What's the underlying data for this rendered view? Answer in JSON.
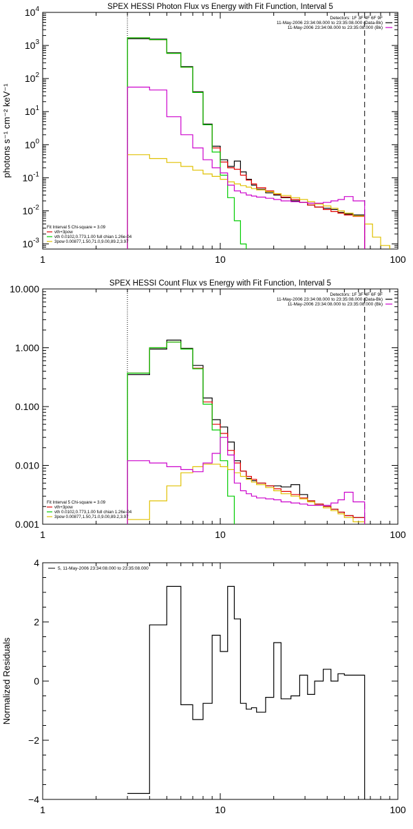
{
  "chart_data": [
    {
      "type": "line",
      "title": "SPEX HESSI Photon Flux vs Energy with Fit Function, Interval 5",
      "ylabel": "photons s⁻¹ cm⁻² keV⁻¹",
      "xlabel": "",
      "xscale": "log",
      "yscale": "log",
      "xlim": [
        1,
        100
      ],
      "ylim": [
        0.0007,
        10000
      ],
      "xticks": [
        {
          "v": 1,
          "label": "1"
        },
        {
          "v": 10,
          "label": "10"
        },
        {
          "v": 100,
          "label": "100"
        }
      ],
      "yticks": [
        {
          "v": 0.001,
          "label": "10",
          "exp": "-3"
        },
        {
          "v": 0.01,
          "label": "10",
          "exp": "-2"
        },
        {
          "v": 0.1,
          "label": "10",
          "exp": "-1"
        },
        {
          "v": 1,
          "label": "10",
          "exp": "0"
        },
        {
          "v": 10,
          "label": "10",
          "exp": "1"
        },
        {
          "v": 100,
          "label": "10",
          "exp": "2"
        },
        {
          "v": 1000,
          "label": "10",
          "exp": "3"
        },
        {
          "v": 10000,
          "label": "10",
          "exp": "4"
        }
      ],
      "vlines": [
        {
          "x": 3.0,
          "style": "dotted"
        },
        {
          "x": 65.0,
          "style": "dashed"
        }
      ],
      "legend_top": [
        {
          "text": "Detectors: 1F 3F 4F 6F 9F",
          "color": ""
        },
        {
          "text": "11-May-2006 23:34:08.000 to 23:35:08.000 (Data-Bk)",
          "color": "#000000"
        },
        {
          "text": "11-May-2006 23:34:08.000 to 23:35:08.000 (Bk)",
          "color": "#cc00cc"
        }
      ],
      "legend_bottom": [
        {
          "text": "Fit Interval 5   Chi-square = 3.09",
          "color": ""
        },
        {
          "text": "vth+3pow",
          "color": "#e00000"
        },
        {
          "text": "vth 0.0102,0.773,1.00  full chian 1.26e-04",
          "color": "#00cc00"
        },
        {
          "text": "3pow 0.00877,1.50,71.0,9.00,89.2,3.97",
          "color": "#e0c000"
        }
      ],
      "series": [
        {
          "color": "#000000",
          "edges": [
            3.0,
            4.0,
            5.0,
            6.0,
            7.0,
            8.0,
            9.0,
            10.0,
            11.0,
            12.0,
            13.0,
            14.0,
            15.0,
            16.0,
            18.0,
            20.0,
            22.0,
            25.0,
            28.0,
            31.0,
            34.0,
            38.0,
            42.0,
            46.0,
            50.0,
            56.0,
            65.0
          ],
          "values": [
            1600,
            1550,
            600,
            230,
            40,
            4.2,
            0.9,
            0.35,
            0.22,
            0.32,
            0.15,
            0.09,
            0.06,
            0.045,
            0.035,
            0.03,
            0.025,
            0.02,
            0.018,
            0.015,
            0.013,
            0.012,
            0.011,
            0.009,
            0.008,
            0.0075
          ]
        },
        {
          "color": "#e00000",
          "edges": [
            3.0,
            4.0,
            5.0,
            6.0,
            7.0,
            8.0,
            9.0,
            10.0,
            11.0,
            12.0,
            13.0,
            14.0,
            15.0,
            16.0,
            18.0,
            20.0,
            22.0,
            25.0,
            28.0,
            31.0,
            34.0,
            38.0,
            42.0,
            46.0,
            50.0,
            56.0,
            65.0
          ],
          "values": [
            1700,
            1500,
            580,
            220,
            38,
            4.0,
            0.8,
            0.3,
            0.2,
            0.18,
            0.12,
            0.085,
            0.065,
            0.05,
            0.04,
            0.032,
            0.026,
            0.022,
            0.018,
            0.015,
            0.013,
            0.011,
            0.0095,
            0.0085,
            0.0075,
            0.0068
          ]
        },
        {
          "color": "#00cc00",
          "edges": [
            3.0,
            4.0,
            5.0,
            6.0,
            7.0,
            8.0,
            9.0,
            10.0,
            11.0,
            12.0,
            13.0,
            14.0
          ],
          "values": [
            1700,
            1500,
            580,
            220,
            38,
            4.0,
            0.6,
            0.12,
            0.025,
            0.005,
            0.001
          ]
        },
        {
          "color": "#e0c000",
          "edges": [
            3.0,
            4.0,
            5.0,
            6.0,
            7.0,
            8.0,
            9.0,
            10.0,
            11.0,
            12.0,
            13.0,
            14.0,
            15.0,
            16.0,
            18.0,
            20.0,
            22.0,
            25.0,
            28.0,
            31.0,
            34.0,
            38.0,
            42.0,
            46.0,
            50.0,
            56.0,
            65.0,
            72.0,
            80.0,
            90.0
          ],
          "values": [
            0.5,
            0.38,
            0.29,
            0.22,
            0.17,
            0.13,
            0.11,
            0.09,
            0.075,
            0.065,
            0.058,
            0.052,
            0.047,
            0.043,
            0.038,
            0.033,
            0.029,
            0.025,
            0.022,
            0.019,
            0.016,
            0.014,
            0.012,
            0.01,
            0.0085,
            0.007,
            0.004,
            0.0016,
            0.0009
          ]
        },
        {
          "color": "#cc00cc",
          "edges": [
            3.0,
            4.0,
            5.0,
            6.0,
            7.0,
            8.0,
            9.0,
            10.0,
            11.0,
            12.0,
            13.0,
            14.0,
            15.0,
            16.0,
            18.0,
            20.0,
            22.0,
            25.0,
            28.0,
            31.0,
            34.0,
            38.0,
            42.0,
            46.0,
            50.0,
            56.0,
            65.0
          ],
          "values": [
            55,
            45,
            7,
            2.0,
            0.8,
            0.35,
            0.2,
            0.14,
            0.06,
            0.04,
            0.035,
            0.03,
            0.028,
            0.026,
            0.024,
            0.022,
            0.02,
            0.019,
            0.018,
            0.017,
            0.017,
            0.018,
            0.02,
            0.022,
            0.027,
            0.02,
            0.0004
          ]
        }
      ]
    },
    {
      "type": "line",
      "title": "SPEX HESSI Count Flux vs Energy with Fit Function, Interval 5",
      "ylabel": "",
      "xlabel": "",
      "xscale": "log",
      "yscale": "log",
      "xlim": [
        1,
        100
      ],
      "ylim": [
        0.001,
        10
      ],
      "xticks": [
        {
          "v": 1,
          "label": "1"
        },
        {
          "v": 10,
          "label": "10"
        },
        {
          "v": 100,
          "label": "100"
        }
      ],
      "yticks": [
        {
          "v": 0.001,
          "label": "0.001"
        },
        {
          "v": 0.01,
          "label": "0.010"
        },
        {
          "v": 0.1,
          "label": "0.100"
        },
        {
          "v": 1,
          "label": "1.000"
        },
        {
          "v": 10,
          "label": "10.000"
        }
      ],
      "vlines": [
        {
          "x": 3.0,
          "style": "dotted"
        },
        {
          "x": 65.0,
          "style": "dashed"
        }
      ],
      "legend_top": [
        {
          "text": "Detectors: 1F 3F 4F 6F 9F",
          "color": ""
        },
        {
          "text": "11-May-2006 23:34:08.000 to 23:35:08.000 (Data-Bk)",
          "color": "#000000"
        },
        {
          "text": "11-May-2006 23:34:08.000 to 23:35:08.000 (Bk)",
          "color": "#cc00cc"
        }
      ],
      "legend_bottom": [
        {
          "text": "Fit Interval 5   Chi-square = 3.09",
          "color": ""
        },
        {
          "text": "vth+3pow",
          "color": "#e00000"
        },
        {
          "text": "vth 0.0102,0.773,1.00  full chian 1.26e-04",
          "color": "#00cc00"
        },
        {
          "text": "3pow 0.00877,1.50,71.0,9.00,89.2,3.97",
          "color": "#e0c000"
        }
      ],
      "series": [
        {
          "color": "#000000",
          "edges": [
            3.0,
            4.0,
            5.0,
            6.0,
            7.0,
            8.0,
            9.0,
            10.0,
            11.0,
            12.0,
            13.0,
            14.0,
            15.0,
            16.0,
            18.0,
            20.0,
            22.0,
            25.0,
            28.0,
            31.0,
            34.0,
            38.0,
            42.0,
            46.0,
            50.0,
            56.0,
            65.0
          ],
          "values": [
            0.35,
            0.95,
            1.35,
            0.98,
            0.5,
            0.14,
            0.06,
            0.045,
            0.025,
            0.012,
            0.008,
            0.006,
            0.0055,
            0.005,
            0.0045,
            0.0045,
            0.0043,
            0.0047,
            0.0032,
            0.0025,
            0.0022,
            0.002,
            0.0018,
            0.0016,
            0.0014,
            0.0013
          ]
        },
        {
          "color": "#e00000",
          "edges": [
            3.0,
            4.0,
            5.0,
            6.0,
            7.0,
            8.0,
            9.0,
            10.0,
            11.0,
            12.0,
            13.0,
            14.0,
            15.0,
            16.0,
            18.0,
            20.0,
            22.0,
            25.0,
            28.0,
            31.0,
            34.0,
            38.0,
            42.0,
            46.0,
            50.0,
            56.0,
            65.0
          ],
          "values": [
            0.37,
            1.0,
            1.25,
            0.95,
            0.45,
            0.12,
            0.05,
            0.035,
            0.018,
            0.011,
            0.008,
            0.0065,
            0.0058,
            0.005,
            0.0045,
            0.004,
            0.0036,
            0.0032,
            0.0028,
            0.0025,
            0.0022,
            0.002,
            0.0018,
            0.0016,
            0.0014,
            0.0013
          ]
        },
        {
          "color": "#00cc00",
          "edges": [
            3.0,
            4.0,
            5.0,
            6.0,
            7.0,
            8.0,
            9.0,
            10.0,
            11.0,
            12.0
          ],
          "values": [
            0.37,
            1.0,
            1.25,
            0.95,
            0.44,
            0.11,
            0.04,
            0.012,
            0.003
          ]
        },
        {
          "color": "#e0c000",
          "edges": [
            3.0,
            4.0,
            5.0,
            6.0,
            7.0,
            8.0,
            9.0,
            10.0,
            11.0,
            12.0,
            13.0,
            14.0,
            15.0,
            16.0,
            18.0,
            20.0,
            22.0,
            25.0,
            28.0,
            31.0,
            34.0,
            38.0,
            42.0,
            46.0,
            50.0,
            56.0,
            65.0
          ],
          "values": [
            0.0012,
            0.0025,
            0.0045,
            0.0075,
            0.0095,
            0.0105,
            0.0105,
            0.0095,
            0.0085,
            0.0075,
            0.0065,
            0.0058,
            0.0052,
            0.0047,
            0.0042,
            0.0037,
            0.0033,
            0.003,
            0.0027,
            0.0024,
            0.0021,
            0.0019,
            0.0017,
            0.0015,
            0.0013,
            0.0011
          ]
        },
        {
          "color": "#cc00cc",
          "edges": [
            3.0,
            4.0,
            5.0,
            6.0,
            7.0,
            8.0,
            9.0,
            10.0,
            11.0,
            12.0,
            13.0,
            14.0,
            15.0,
            16.0,
            18.0,
            20.0,
            22.0,
            25.0,
            28.0,
            31.0,
            34.0,
            38.0,
            42.0,
            46.0,
            50.0,
            56.0,
            65.0
          ],
          "values": [
            0.012,
            0.011,
            0.0095,
            0.0085,
            0.0078,
            0.011,
            0.016,
            0.03,
            0.015,
            0.005,
            0.0037,
            0.0033,
            0.003,
            0.0028,
            0.0027,
            0.0026,
            0.0024,
            0.0023,
            0.0022,
            0.0021,
            0.0021,
            0.0021,
            0.0023,
            0.0026,
            0.0035,
            0.0024
          ]
        }
      ]
    },
    {
      "type": "line",
      "title": "",
      "ylabel": "Normalized Residuals",
      "xlabel": "",
      "xscale": "log",
      "yscale": "linear",
      "xlim": [
        1,
        100
      ],
      "ylim": [
        -4,
        4
      ],
      "xticks": [
        {
          "v": 1,
          "label": "1"
        },
        {
          "v": 10,
          "label": "10"
        },
        {
          "v": 100,
          "label": "100"
        }
      ],
      "yticks": [
        {
          "v": -4,
          "label": "−4"
        },
        {
          "v": -2,
          "label": "−2"
        },
        {
          "v": 0,
          "label": "0"
        },
        {
          "v": 2,
          "label": "2"
        },
        {
          "v": 4,
          "label": "4"
        }
      ],
      "vlines": [],
      "legend_top": [
        {
          "text": "5, 11-May-2006 23:34:08.000 to 23:35:08.000",
          "color": "#000000"
        }
      ],
      "legend_bottom": [],
      "series": [
        {
          "color": "#000000",
          "edges": [
            3.0,
            4.0,
            5.0,
            6.0,
            7.0,
            8.0,
            9.0,
            10.0,
            11.0,
            12.0,
            13.0,
            14.0,
            15.0,
            16.0,
            18.0,
            20.0,
            22.0,
            25.0,
            28.0,
            31.0,
            34.0,
            38.0,
            42.0,
            46.0,
            50.0,
            56.0,
            65.0
          ],
          "values": [
            -3.8,
            1.9,
            3.2,
            -0.8,
            -1.3,
            -0.75,
            1.55,
            1.0,
            3.2,
            2.1,
            -0.75,
            -0.95,
            -0.9,
            -1.05,
            -0.55,
            1.3,
            -0.6,
            -0.5,
            0.2,
            -0.45,
            0.0,
            0.4,
            0.0,
            0.25,
            0.2,
            0.2
          ],
          "end_value": -4
        }
      ]
    }
  ]
}
